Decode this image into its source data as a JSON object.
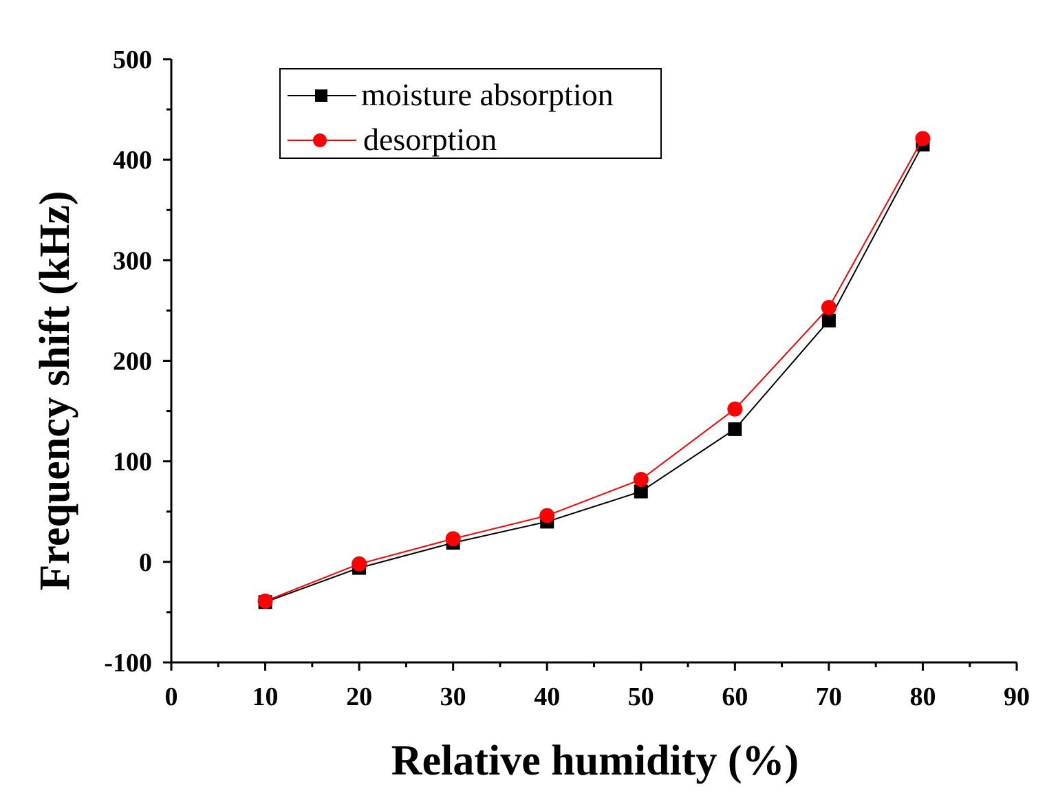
{
  "chart_data": {
    "type": "line",
    "title": "",
    "xlabel": "Relative humidity (%)",
    "ylabel": "Frequency shift (kHz)",
    "xlim": [
      0,
      90
    ],
    "ylim": [
      -100,
      500
    ],
    "x_major_ticks": [
      0,
      10,
      20,
      30,
      40,
      50,
      60,
      70,
      80,
      90
    ],
    "x_tick_labels": [
      "0",
      "10",
      "20",
      "30",
      "40",
      "50",
      "60",
      "70",
      "80",
      "90"
    ],
    "y_major_ticks": [
      -100,
      0,
      100,
      200,
      300,
      400,
      500
    ],
    "y_tick_labels": [
      "-100",
      "0",
      "100",
      "200",
      "300",
      "400",
      "500"
    ],
    "grid": false,
    "legend_position": "top-left",
    "x": [
      10,
      20,
      30,
      40,
      50,
      60,
      70,
      80
    ],
    "series": [
      {
        "name": "moisture absorption",
        "color": "#000000",
        "marker": "square",
        "values": [
          -40,
          -6,
          19,
          40,
          70,
          132,
          240,
          415
        ]
      },
      {
        "name": "desorption",
        "color": "#ff0000",
        "marker": "circle",
        "values": [
          -39,
          -2,
          23,
          46,
          82,
          152,
          253,
          421
        ]
      }
    ]
  }
}
